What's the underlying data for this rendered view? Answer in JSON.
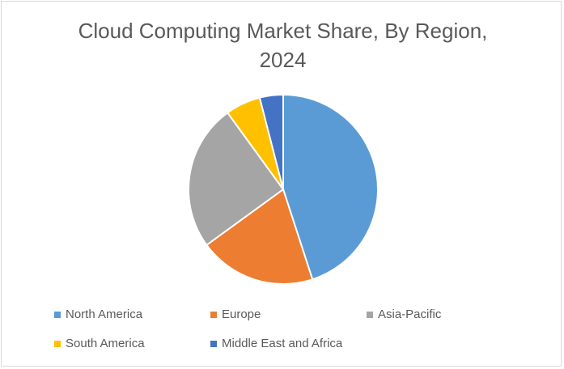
{
  "chart_data": {
    "type": "pie",
    "title_lines": [
      "Cloud Computing Market Share, By Region,",
      "2024"
    ],
    "categories": [
      "North America",
      "Europe",
      "Asia-Pacific",
      "South America",
      "Middle East and Africa"
    ],
    "values": [
      45,
      20,
      25,
      6,
      4
    ],
    "colors": [
      "#5b9bd5",
      "#ed7d31",
      "#a5a5a5",
      "#ffc000",
      "#4472c4"
    ],
    "legend_position": "bottom",
    "start_angle_deg": 0,
    "direction": "clockwise"
  }
}
